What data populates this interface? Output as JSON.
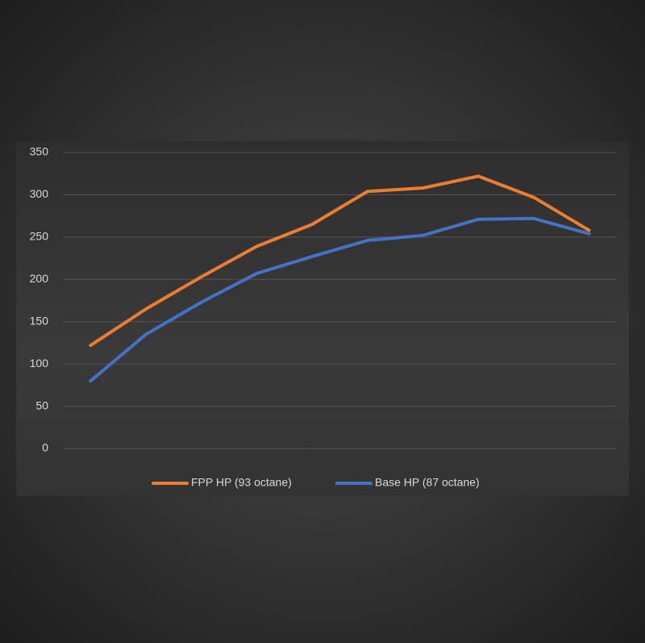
{
  "chart_data": {
    "type": "line",
    "categories": [
      null,
      null,
      null,
      null,
      null,
      null,
      null,
      null,
      null,
      null
    ],
    "series": [
      {
        "name": "FPP HP (93 octane)",
        "color": "#ed7d31",
        "values": [
          122,
          165,
          203,
          239,
          265,
          304,
          308,
          322,
          297,
          258
        ]
      },
      {
        "name": "Base HP (87 octane)",
        "color": "#4472c4",
        "values": [
          80,
          135,
          173,
          207,
          227,
          246,
          252,
          271,
          272,
          254
        ]
      }
    ],
    "ylim": [
      0,
      350
    ],
    "yticks": [
      0,
      50,
      100,
      150,
      200,
      250,
      300,
      350
    ],
    "grid": true,
    "legend": "bottom"
  }
}
